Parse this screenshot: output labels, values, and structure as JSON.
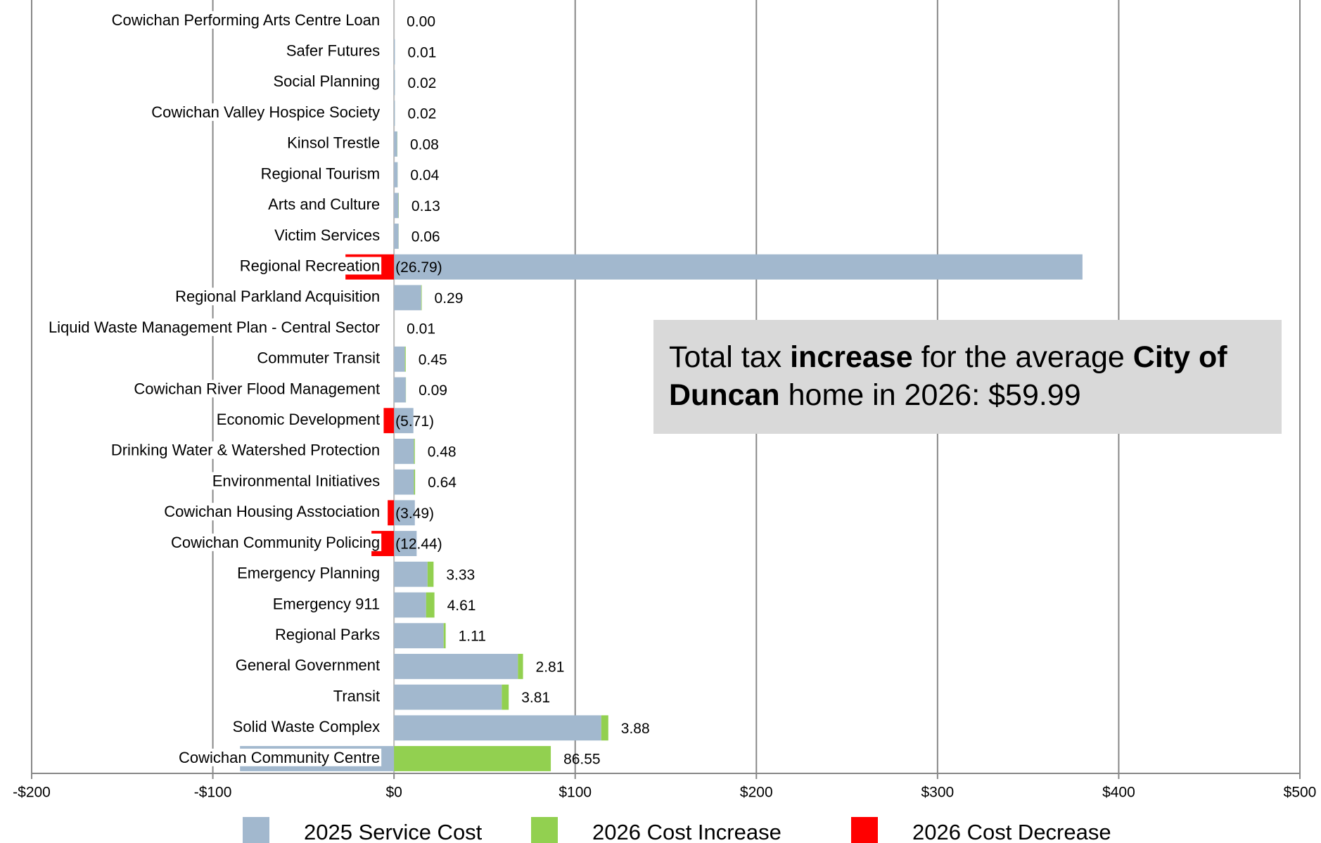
{
  "chart_data": {
    "type": "stacked_hbar",
    "categories": [
      "Cowichan Performing Arts Centre Loan",
      "Safer Futures",
      "Social Planning",
      "Cowichan Valley Hospice Society",
      "Kinsol Trestle",
      "Regional Tourism",
      "Arts and Culture",
      "Victim Services",
      "Regional Recreation",
      "Regional Parkland Acquisition",
      "Liquid Waste Management Plan - Central Sector",
      "Commuter Transit",
      "Cowichan River Flood Management",
      "Economic Development",
      "Drinking Water & Watershed Protection",
      "Environmental Initiatives",
      "Cowichan Housing Asstociation",
      "Cowichan Community Policing",
      "Emergency Planning",
      "Emergency 911",
      "Regional Parks",
      "General Government",
      "Transit",
      "Solid Waste Complex",
      "Cowichan Community Centre"
    ],
    "series": [
      {
        "name": "2025 Service Cost",
        "color": "#a2b8ce",
        "values": [
          0,
          0.5,
          0.5,
          0.5,
          1.8,
          2,
          2.5,
          2.5,
          380,
          15,
          0,
          6,
          6.5,
          10.7,
          11,
          11,
          11.5,
          12.5,
          18.5,
          17.7,
          27.4,
          68.4,
          59.5,
          114.4,
          -85
        ]
      },
      {
        "name": "2026 Cost Increase",
        "color": "#92d050",
        "values": [
          0,
          0.01,
          0.02,
          0.02,
          0.08,
          0.04,
          0.13,
          0.06,
          null,
          0.29,
          0.01,
          0.45,
          0.09,
          null,
          0.48,
          0.64,
          null,
          null,
          3.33,
          4.61,
          1.11,
          2.81,
          3.81,
          3.88,
          86.55
        ],
        "value_labels": [
          "0.00",
          null,
          null,
          null,
          null,
          null,
          null,
          null,
          null,
          null,
          null,
          null,
          null,
          null,
          null,
          null,
          null,
          null,
          null,
          null,
          null,
          null,
          null,
          null,
          null
        ]
      },
      {
        "name": "2026 Cost Decrease",
        "color": "#ff0000",
        "values": [
          null,
          null,
          null,
          null,
          null,
          null,
          null,
          null,
          -26.79,
          null,
          null,
          null,
          null,
          -5.71,
          null,
          null,
          -3.49,
          -12.44,
          null,
          null,
          null,
          null,
          null,
          null,
          null
        ],
        "value_labels": [
          null,
          null,
          null,
          null,
          null,
          null,
          null,
          null,
          "(26.79)",
          null,
          null,
          null,
          null,
          "(5.71)",
          null,
          null,
          "(3.49)",
          "(12.44)",
          null,
          null,
          null,
          null,
          null,
          null,
          null
        ]
      }
    ],
    "xlim": [
      -200,
      500
    ],
    "xticks": [
      {
        "value": -200,
        "label": "-$200"
      },
      {
        "value": -100,
        "label": "-$100"
      },
      {
        "value": 0,
        "label": "$0"
      },
      {
        "value": 100,
        "label": "$100"
      },
      {
        "value": 200,
        "label": "$200"
      },
      {
        "value": 300,
        "label": "$300"
      },
      {
        "value": 400,
        "label": "$400"
      },
      {
        "value": 500,
        "label": "$500"
      }
    ],
    "grid": true,
    "legend": "bottom",
    "annotation": [
      {
        "text": "Total tax ",
        "bold": false
      },
      {
        "text": "increase",
        "bold": true
      },
      {
        "text": " for the average ",
        "bold": false
      },
      {
        "text": "City of",
        "bold": true
      },
      {
        "text": "Duncan",
        "bold": true,
        "newline": true
      },
      {
        "text": " home in 2026: $59.99",
        "bold": false
      }
    ]
  }
}
